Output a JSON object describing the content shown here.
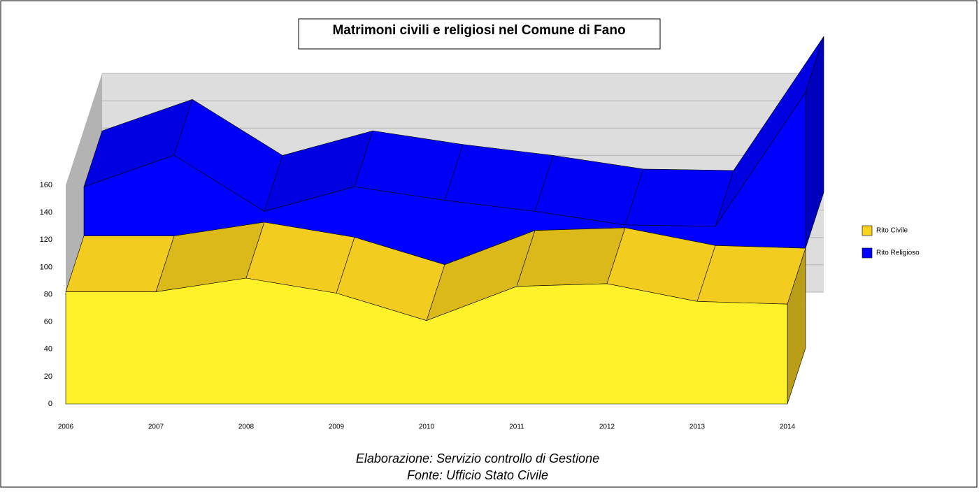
{
  "chart_data": {
    "type": "area3d-stacked",
    "title": "Matrimoni civili e religiosi nel Comune di Fano",
    "categories": [
      "2006",
      "2007",
      "2008",
      "2009",
      "2010",
      "2011",
      "2012",
      "2013",
      "2014"
    ],
    "series": [
      {
        "name": "Rito Civile",
        "color": "#f9d21f",
        "values": [
          82,
          82,
          92,
          81,
          61,
          86,
          88,
          75,
          73
        ]
      },
      {
        "name": "Rito Religioso",
        "color": "#0000ff",
        "values": [
          36,
          59,
          8,
          37,
          47,
          14,
          2,
          14,
          114
        ]
      }
    ],
    "ylim": [
      0,
      160
    ],
    "yticks": [
      0,
      20,
      40,
      60,
      80,
      100,
      120,
      140,
      160
    ],
    "grid": true,
    "legend": "right",
    "notes": [
      "Elaborazione: Servizio controllo di Gestione",
      "Fonte: Ufficio Stato Civile"
    ]
  }
}
